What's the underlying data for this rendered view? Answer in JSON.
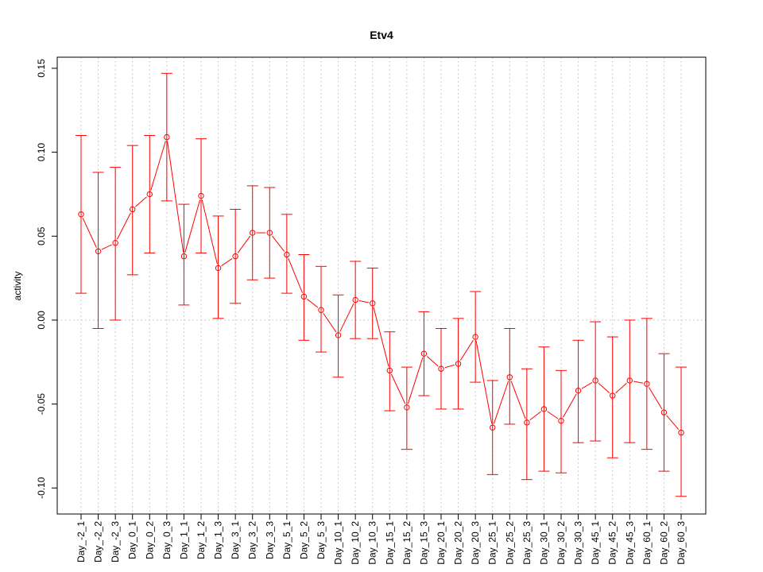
{
  "chart_data": {
    "type": "line",
    "title": "Etv4",
    "xlabel": "",
    "ylabel": "activity",
    "ylim": [
      -0.1155,
      0.1566
    ],
    "yticks": [
      -0.1,
      -0.05,
      0.0,
      0.05,
      0.1,
      0.15
    ],
    "ytick_labels": [
      "-0.10",
      "-0.05",
      "0.00",
      "0.05",
      "0.10",
      "0.15"
    ],
    "grid": "vertical dotted at each category, horizontal dotted at 0",
    "series_color": "#ff0000",
    "categories": [
      "Day_-2_1",
      "Day_-2_2",
      "Day_-2_3",
      "Day_0_1",
      "Day_0_2",
      "Day_0_3",
      "Day_1_1",
      "Day_1_2",
      "Day_1_3",
      "Day_3_1",
      "Day_3_2",
      "Day_3_3",
      "Day_5_1",
      "Day_5_2",
      "Day_5_3",
      "Day_10_1",
      "Day_10_2",
      "Day_10_3",
      "Day_15_1",
      "Day_15_2",
      "Day_15_3",
      "Day_20_1",
      "Day_20_2",
      "Day_20_3",
      "Day_25_1",
      "Day_25_2",
      "Day_25_3",
      "Day_30_1",
      "Day_30_2",
      "Day_30_3",
      "Day_45_1",
      "Day_45_2",
      "Day_45_3",
      "Day_60_1",
      "Day_60_2",
      "Day_60_3"
    ],
    "series": [
      {
        "name": "activity",
        "values": [
          0.063,
          0.041,
          0.046,
          0.066,
          0.075,
          0.109,
          0.038,
          0.074,
          0.031,
          0.038,
          0.052,
          0.052,
          0.039,
          0.014,
          0.006,
          -0.009,
          0.012,
          0.01,
          -0.03,
          -0.052,
          -0.02,
          -0.029,
          -0.026,
          -0.01,
          -0.064,
          -0.034,
          -0.061,
          -0.053,
          -0.06,
          -0.042,
          -0.036,
          -0.045,
          -0.036,
          -0.038,
          -0.055,
          -0.067
        ],
        "upper": [
          0.11,
          0.088,
          0.091,
          0.104,
          0.11,
          0.147,
          0.069,
          0.108,
          0.062,
          0.066,
          0.08,
          0.079,
          0.063,
          0.039,
          0.032,
          0.015,
          0.035,
          0.031,
          -0.007,
          -0.028,
          0.005,
          -0.005,
          0.001,
          0.017,
          -0.036,
          -0.005,
          -0.029,
          -0.016,
          -0.03,
          -0.012,
          -0.001,
          -0.01,
          0.0,
          0.001,
          -0.02,
          -0.028
        ],
        "lower": [
          0.016,
          -0.005,
          0.0,
          0.027,
          0.04,
          0.071,
          0.009,
          0.04,
          0.001,
          0.01,
          0.024,
          0.025,
          0.016,
          -0.012,
          -0.019,
          -0.034,
          -0.011,
          -0.011,
          -0.054,
          -0.077,
          -0.045,
          -0.053,
          -0.053,
          -0.037,
          -0.092,
          -0.062,
          -0.095,
          -0.09,
          -0.091,
          -0.073,
          -0.072,
          -0.082,
          -0.073,
          -0.077,
          -0.09,
          -0.105
        ]
      }
    ]
  }
}
